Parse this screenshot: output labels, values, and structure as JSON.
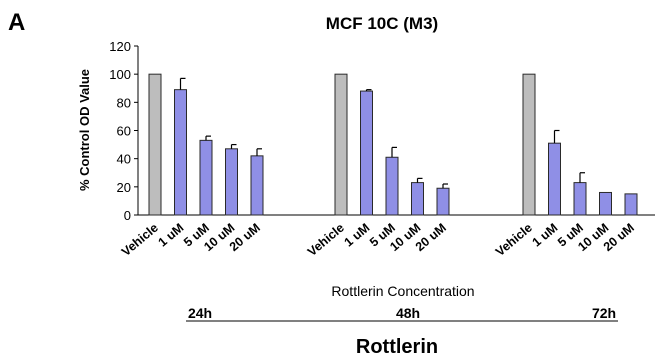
{
  "panel_label": "A",
  "chart_data": {
    "type": "bar",
    "title": "MCF 10C (M3)",
    "ylabel": "% Control OD Value",
    "xlabel": "Rottlerin Concentration",
    "footer_title": "Rottlerin",
    "ylim": [
      0,
      120
    ],
    "yticks": [
      0,
      20,
      40,
      60,
      80,
      100,
      120
    ],
    "grid": false,
    "error_bars": "upper",
    "colors": {
      "vehicle": "#bdbdbd",
      "treatment": "#8f8fe6",
      "edge": "#2a2a2a"
    },
    "groups": [
      {
        "name": "24h",
        "categories": [
          "Vehicle",
          "1 uM",
          "5 uM",
          "10 uM",
          "20 uM"
        ],
        "values": [
          100,
          89,
          53,
          47,
          42
        ],
        "errors": [
          0,
          8,
          3,
          3,
          5
        ]
      },
      {
        "name": "48h",
        "categories": [
          "Vehicle",
          "1 uM",
          "5 uM",
          "10 uM",
          "20 uM"
        ],
        "values": [
          100,
          88,
          41,
          23,
          19
        ],
        "errors": [
          0,
          1,
          7,
          3,
          3
        ]
      },
      {
        "name": "72h",
        "categories": [
          "Vehicle",
          "1 uM",
          "5 uM",
          "10 uM",
          "20 uM"
        ],
        "values": [
          100,
          51,
          23,
          16,
          15
        ],
        "errors": [
          0,
          9,
          7,
          0,
          0
        ]
      }
    ]
  }
}
